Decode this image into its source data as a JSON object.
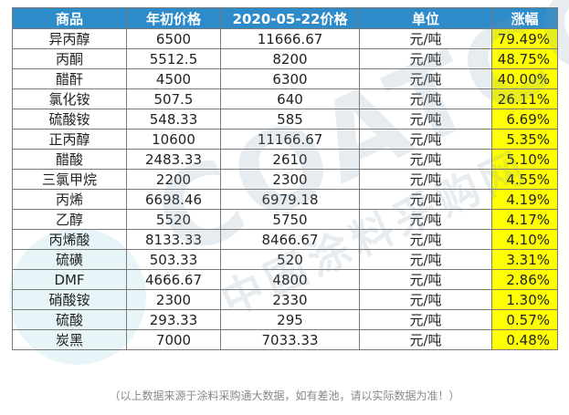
{
  "table": {
    "headers": [
      "商品",
      "年初价格",
      "2020-05-22价格",
      "单位",
      "涨幅"
    ],
    "rows": [
      [
        "异丙醇",
        "6500",
        "11666.67",
        "元/吨",
        "79.49%"
      ],
      [
        "丙酮",
        "5512.5",
        "8200",
        "元/吨",
        "48.75%"
      ],
      [
        "醋酐",
        "4500",
        "6300",
        "元/吨",
        "40.00%"
      ],
      [
        "氯化铵",
        "507.5",
        "640",
        "元/吨",
        "26.11%"
      ],
      [
        "硫酸铵",
        "548.33",
        "585",
        "元/吨",
        "6.69%"
      ],
      [
        "正丙醇",
        "10600",
        "11166.67",
        "元/吨",
        "5.35%"
      ],
      [
        "醋酸",
        "2483.33",
        "2610",
        "元/吨",
        "5.10%"
      ],
      [
        "三氯甲烷",
        "2200",
        "2300",
        "元/吨",
        "4.55%"
      ],
      [
        "丙烯",
        "6698.46",
        "6979.18",
        "元/吨",
        "4.19%"
      ],
      [
        "乙醇",
        "5520",
        "5750",
        "元/吨",
        "4.17%"
      ],
      [
        "丙烯酸",
        "8133.33",
        "8466.67",
        "元/吨",
        "4.10%"
      ],
      [
        "硫磺",
        "503.33",
        "520",
        "元/吨",
        "3.31%"
      ],
      [
        "DMF",
        "4666.67",
        "4800",
        "元/吨",
        "2.86%"
      ],
      [
        "硝酸铵",
        "2300",
        "2330",
        "元/吨",
        "1.30%"
      ],
      [
        "硫酸",
        "293.33",
        "295",
        "元/吨",
        "0.57%"
      ],
      [
        "炭黑",
        "7000",
        "7033.33",
        "元/吨",
        "0.48%"
      ]
    ]
  },
  "footer": "（以上数据来源于涂料采购通大数据，如有差池，请以实际数据为准！）",
  "watermark": {
    "text": "COATCC",
    "text_cn": "中国涂料采购网"
  },
  "colors": {
    "header_bg": "#2e8bc9",
    "highlight": "#ffff00"
  }
}
